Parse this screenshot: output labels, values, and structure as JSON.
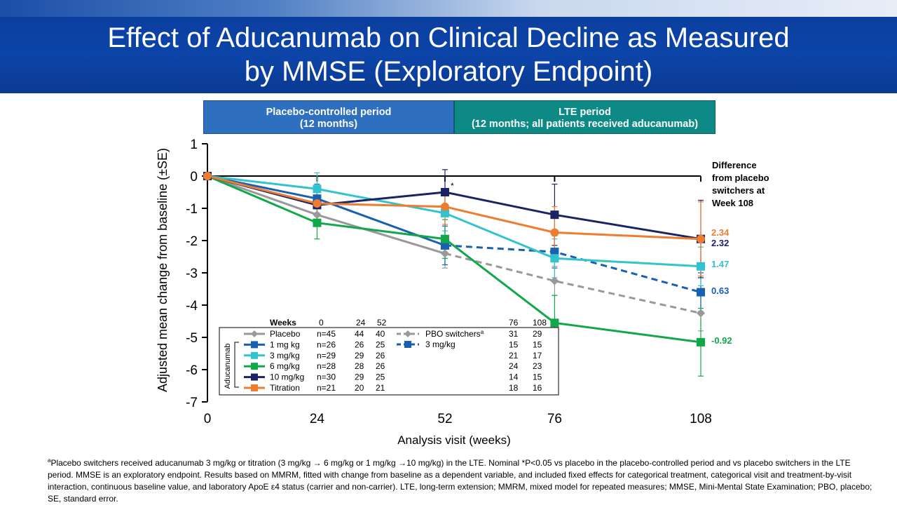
{
  "title": {
    "line1": "Effect of Aducanumab on Clinical Decline as Measured",
    "line2": "by MMSE (Exploratory Endpoint)"
  },
  "periods": {
    "placebo_controlled": {
      "line1": "Placebo-controlled period",
      "line2": "(12 months)",
      "color": "#2f6fc0"
    },
    "lte": {
      "line1": "LTE  period",
      "line2": "(12 months; all patients received aducanumab)",
      "color": "#0d8a86"
    }
  },
  "difference_title": [
    "Difference",
    "from placebo",
    "switchers at",
    "Week 108"
  ],
  "difference_labels": [
    {
      "series": "Titration",
      "text": "2.34",
      "color": "#ed7d31"
    },
    {
      "series": "10 mg/kg",
      "text": "2.32",
      "color": "#1a2366"
    },
    {
      "series": "3 mg/kg",
      "text": "1.47",
      "color": "#33c3d0"
    },
    {
      "series": "1 mg kg",
      "text": "0.63",
      "color": "#1960b0"
    },
    {
      "series": "6 mg/kg",
      "text": "-0.92",
      "color": "#12a84a"
    }
  ],
  "chart_data": {
    "type": "line",
    "xlabel": "Analysis visit (weeks)",
    "ylabel": "Adjusted mean change from baseline (±SE)",
    "x_ticks": [
      0,
      24,
      52,
      76,
      108
    ],
    "y_ticks": [
      1,
      0,
      -1,
      -2,
      -3,
      -4,
      -5,
      -6,
      -7
    ],
    "xlim": [
      0,
      108
    ],
    "ylim": [
      -7,
      1
    ],
    "grid": false,
    "significance_marker": {
      "text": "*",
      "x": 52,
      "y": -0.3
    },
    "series": [
      {
        "name": "Placebo",
        "color": "#999999",
        "style": "solid",
        "marker": "diamond",
        "x": [
          0,
          24,
          52
        ],
        "y": [
          0,
          -1.2,
          -2.4
        ],
        "se": [
          0,
          0.35,
          0.45
        ]
      },
      {
        "name": "PBO switchers",
        "color": "#999999",
        "style": "dashed",
        "marker": "diamond",
        "x": [
          52,
          76,
          108
        ],
        "y": [
          -2.4,
          -3.25,
          -4.25
        ],
        "se": [
          0,
          0.45,
          0.55
        ]
      },
      {
        "name": "1 mg kg",
        "color": "#1960b0",
        "style": "solid",
        "marker": "square",
        "x": [
          0,
          24,
          52
        ],
        "y": [
          0,
          -0.7,
          -2.15
        ],
        "se": [
          0,
          0.45,
          0.6
        ]
      },
      {
        "name": "3 mg/kg",
        "color": "#1960b0",
        "style": "dashed",
        "marker": "square",
        "x": [
          52,
          76,
          108
        ],
        "y": [
          -2.15,
          -2.35,
          -3.6
        ],
        "se": [
          0,
          0.5,
          0.6
        ]
      },
      {
        "name": "3 mg/kg",
        "color": "#33c3d0",
        "style": "solid",
        "marker": "square",
        "x": [
          0,
          24,
          52,
          76,
          108
        ],
        "y": [
          0,
          -0.4,
          -1.15,
          -2.55,
          -2.8
        ],
        "se": [
          0,
          0.5,
          0.55,
          0.6,
          0.6
        ]
      },
      {
        "name": "6 mg/kg",
        "color": "#12a84a",
        "style": "solid",
        "marker": "square",
        "x": [
          0,
          24,
          52,
          76,
          108
        ],
        "y": [
          0,
          -1.45,
          -1.95,
          -4.55,
          -5.15
        ],
        "se": [
          0,
          0.5,
          0.6,
          0.85,
          1.05
        ]
      },
      {
        "name": "10 mg/kg",
        "color": "#1a2366",
        "style": "solid",
        "marker": "square",
        "x": [
          0,
          24,
          52,
          76,
          108
        ],
        "y": [
          0,
          -0.9,
          -0.5,
          -1.2,
          -1.95
        ],
        "se": [
          0,
          0.45,
          0.7,
          0.95,
          1.2
        ]
      },
      {
        "name": "Titration",
        "color": "#ed7d31",
        "style": "solid",
        "marker": "circle",
        "x": [
          0,
          24,
          52,
          76,
          108
        ],
        "y": [
          0,
          -0.85,
          -0.95,
          -1.75,
          -1.95
        ],
        "se": [
          0,
          0.4,
          0.55,
          0.8,
          1.15
        ]
      }
    ],
    "n_table": {
      "header": {
        "weeks": "Weeks",
        "cols": [
          "0",
          "24",
          "52",
          "76",
          "108"
        ]
      },
      "group_label": "Aducanumab",
      "pbo_switchers_label": "PBO switchers",
      "pbo_switchers_sup": "a",
      "dose_switchers_label": "3 mg/kg",
      "rows": [
        {
          "label": "Placebo",
          "color": "#999999",
          "marker": "diamond",
          "n": [
            "n=45",
            "44",
            "40"
          ],
          "late": [
            "31",
            "29"
          ]
        },
        {
          "label": "1 mg kg",
          "color": "#1960b0",
          "marker": "square",
          "n": [
            "n=26",
            "26",
            "25"
          ],
          "late": [
            "15",
            "15"
          ]
        },
        {
          "label": "3 mg/kg",
          "color": "#33c3d0",
          "marker": "square",
          "n": [
            "n=29",
            "29",
            "26"
          ],
          "late": [
            "21",
            "17"
          ]
        },
        {
          "label": "6 mg/kg",
          "color": "#12a84a",
          "marker": "square",
          "n": [
            "n=28",
            "28",
            "26"
          ],
          "late": [
            "24",
            "23"
          ]
        },
        {
          "label": "10 mg/kg",
          "color": "#1a2366",
          "marker": "square",
          "n": [
            "n=30",
            "29",
            "25"
          ],
          "late": [
            "14",
            "15"
          ]
        },
        {
          "label": "Titration",
          "color": "#ed7d31",
          "marker": "square",
          "n": [
            "n=21",
            "20",
            "21"
          ],
          "late": [
            "18",
            "16"
          ]
        }
      ]
    }
  },
  "footnote": {
    "sup": "a",
    "text": "Placebo switchers received aducanumab 3 mg/kg or titration (3 mg/kg → 6 mg/kg or 1 mg/kg →10 mg/kg) in the LTE. Nominal *P<0.05 vs placebo in the placebo-controlled period and vs placebo switchers in the LTE period. MMSE is an exploratory endpoint. Results based on MMRM, fitted with change from baseline as a dependent variable, and included fixed effects for categorical treatment, categorical visit and treatment-by-visit interaction, continuous baseline value, and laboratory ApoE ε4 status (carrier and non-carrier). LTE, long-term extension; MMRM, mixed model for repeated measures; MMSE, Mini-Mental State Examination; PBO, placebo; SE, standard error."
  }
}
